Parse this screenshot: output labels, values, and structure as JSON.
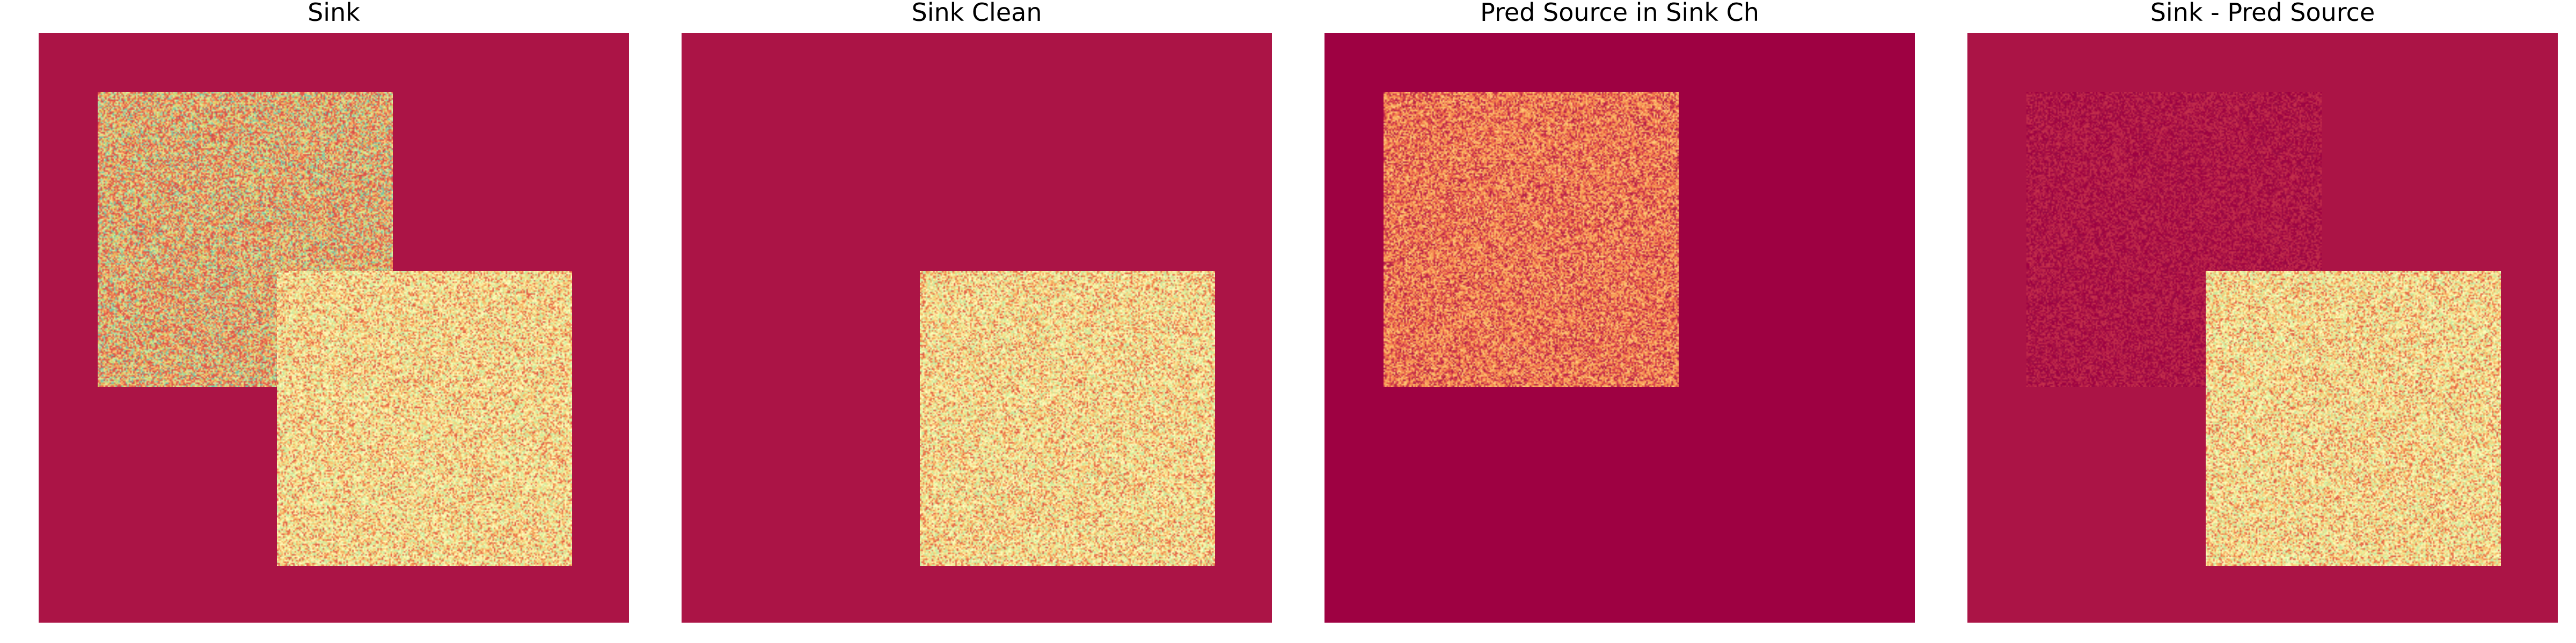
{
  "panels": [
    {
      "title": "Sink",
      "background_color": "#ab1446",
      "squares": [
        {
          "name": "source-square",
          "base_color": "#e0604c",
          "palette": [
            "#d64c4d",
            "#e0604c",
            "#ec7b4f",
            "#f2925a",
            "#f6ae66",
            "#e55a4b",
            "#d6d060",
            "#f9d07c",
            "#c2e29e",
            "#9fd4a4",
            "#76c2a6",
            "#d9ef9b"
          ]
        },
        {
          "name": "sink-square",
          "base_color": "#f4e9a0",
          "palette": [
            "#fbf8b0",
            "#f8e28d",
            "#f7d27d",
            "#fefebd",
            "#e6f49e",
            "#c7e7a0",
            "#f6a35b",
            "#ef7d4d",
            "#e15e48",
            "#cbe9a1",
            "#fdecaa",
            "#f9c270"
          ]
        }
      ]
    },
    {
      "title": "Sink Clean",
      "background_color": "#ab1446",
      "squares": [
        {
          "name": "sink-square",
          "base_color": "#f4e9a0",
          "palette": [
            "#fbf8b0",
            "#f8e28d",
            "#f7d27d",
            "#fefebd",
            "#e6f49e",
            "#c7e7a0",
            "#f6a35b",
            "#ef7d4d",
            "#e15e48",
            "#cbe9a1",
            "#fdecaa",
            "#f9c270"
          ]
        }
      ]
    },
    {
      "title": "Pred Source in Sink Ch",
      "background_color": "#9e0142",
      "squares": [
        {
          "name": "predicted-source-square",
          "base_color": "#e96a4e",
          "palette": [
            "#f0804f",
            "#f9a35b",
            "#fbb866",
            "#d73f4f",
            "#c62f4c",
            "#f47c4c",
            "#e45745",
            "#fdc877",
            "#b41f48",
            "#f89756"
          ]
        }
      ]
    },
    {
      "title": "Sink - Pred Source",
      "background_color": "#ab1446",
      "squares": [
        {
          "name": "residual-square",
          "base_color": "#a1104a",
          "palette": [
            "#9e0142",
            "#a71044",
            "#b31a47",
            "#bd274a",
            "#9a0a45",
            "#c3304b"
          ]
        },
        {
          "name": "sink-square",
          "base_color": "#f4e9a0",
          "palette": [
            "#fbf8b0",
            "#f8e28d",
            "#f7d27d",
            "#fefebd",
            "#e6f49e",
            "#c7e7a0",
            "#f6a35b",
            "#ef7d4d",
            "#e15e48",
            "#cbe9a1",
            "#fdecaa",
            "#f9c270"
          ]
        }
      ]
    }
  ]
}
